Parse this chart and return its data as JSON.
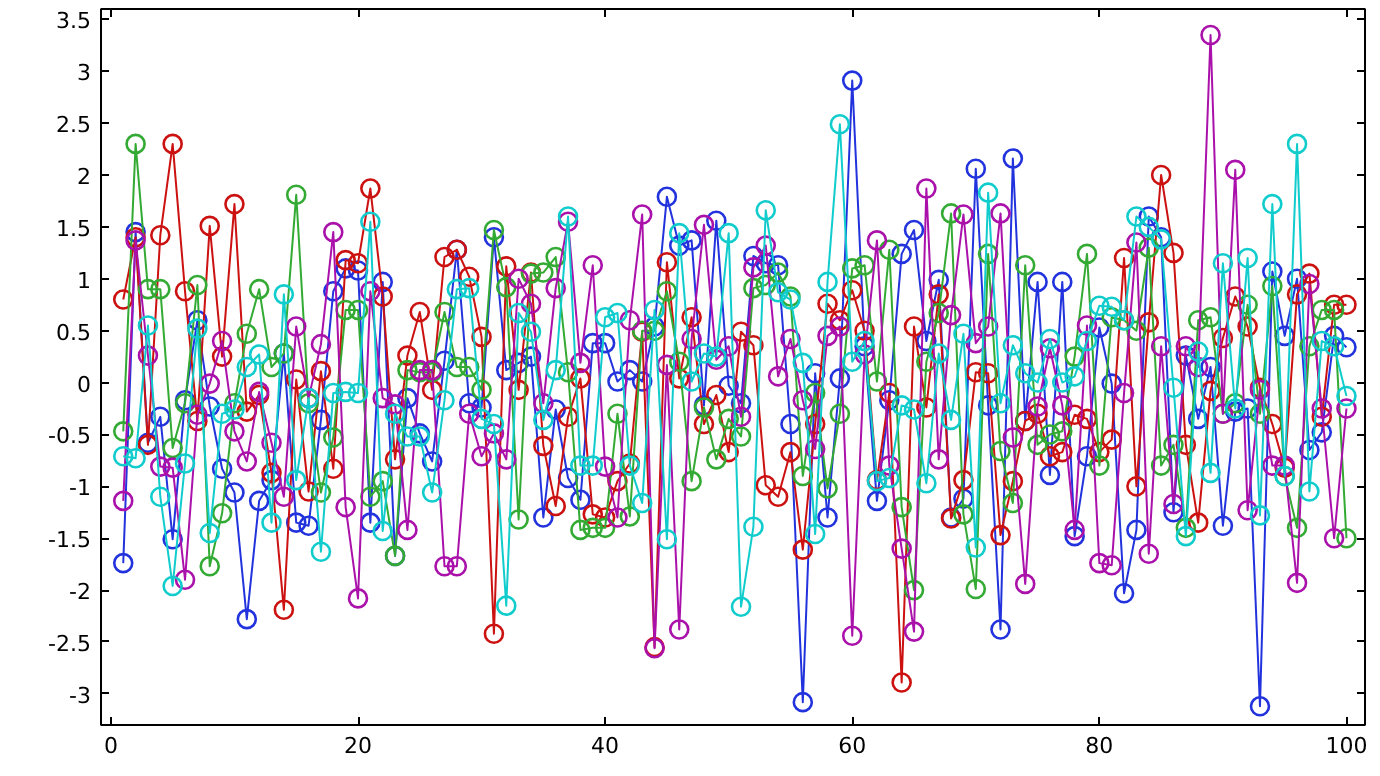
{
  "chart_data": {
    "type": "line",
    "marker": "circle",
    "line_style": "solid",
    "grid": false,
    "x": [
      1,
      2,
      3,
      4,
      5,
      6,
      7,
      8,
      9,
      10,
      11,
      12,
      13,
      14,
      15,
      16,
      17,
      18,
      19,
      20,
      21,
      22,
      23,
      24,
      25,
      26,
      27,
      28,
      29,
      30,
      31,
      32,
      33,
      34,
      35,
      36,
      37,
      38,
      39,
      40,
      41,
      42,
      43,
      44,
      45,
      46,
      47,
      48,
      49,
      50,
      51,
      52,
      53,
      54,
      55,
      56,
      57,
      58,
      59,
      60,
      61,
      62,
      63,
      64,
      65,
      66,
      67,
      68,
      69,
      70,
      71,
      72,
      73,
      74,
      75,
      76,
      77,
      78,
      79,
      80,
      81,
      82,
      83,
      84,
      85,
      86,
      87,
      88,
      89,
      90,
      91,
      92,
      93,
      94,
      95,
      96,
      97,
      98,
      99,
      100
    ],
    "xlim": [
      -0.8,
      101.5
    ],
    "xticks": [
      0,
      20,
      40,
      60,
      80,
      100
    ],
    "ylim": [
      -3.3,
      3.6
    ],
    "yticks": [
      -3,
      -2.5,
      -2,
      -1.5,
      -1,
      -0.5,
      0,
      0.5,
      1,
      1.5,
      2,
      2.5,
      3,
      3.5
    ],
    "series": [
      {
        "color": "#2233dd",
        "values": [
          -1.74,
          1.45,
          -0.58,
          -0.33,
          -1.51,
          -0.17,
          0.6,
          -0.23,
          -0.83,
          -1.06,
          -2.28,
          -1.14,
          -0.94,
          0.28,
          -1.35,
          -1.38,
          -0.36,
          0.88,
          1.1,
          1.08,
          -1.35,
          0.97,
          -1.67,
          -0.15,
          -0.49,
          -0.76,
          0.21,
          1.28,
          -0.2,
          -0.24,
          1.4,
          0.12,
          0.19,
          0.25,
          -1.3,
          -0.26,
          -0.92,
          -1.13,
          0.38,
          0.38,
          0.01,
          0.12,
          0.01,
          0.54,
          1.79,
          1.32,
          1.37,
          -0.22,
          1.56,
          -0.03,
          -0.2,
          1.22,
          1.15,
          1.13,
          -0.4,
          -3.08,
          0.09,
          -1.3,
          0.04,
          2.91,
          0.35,
          -1.14,
          -0.17,
          1.24,
          1.47,
          0.4,
          0.99,
          -1.3,
          -1.12,
          2.06,
          -0.22,
          -2.38,
          2.16,
          -0.37,
          0.97,
          -0.89,
          0.97,
          -1.48,
          -0.71,
          0.53,
          -0.01,
          -2.03,
          -1.42,
          1.6,
          1.4,
          -1.25,
          0.26,
          -0.35,
          0.15,
          -1.38,
          -0.28,
          -0.25,
          -3.12,
          1.07,
          0.45,
          1.0,
          -0.65,
          -0.48,
          0.45,
          0.34
        ]
      },
      {
        "color": "#cc1111",
        "values": [
          0.8,
          1.4,
          -0.6,
          1.42,
          2.3,
          0.88,
          -0.37,
          1.51,
          0.25,
          1.72,
          -0.28,
          -0.12,
          -0.87,
          -2.19,
          0.03,
          -1.05,
          0.11,
          -0.83,
          1.18,
          1.15,
          1.87,
          0.83,
          -0.74,
          0.26,
          0.68,
          -0.07,
          1.21,
          1.28,
          1.02,
          0.44,
          -2.42,
          1.12,
          -0.07,
          1.06,
          -0.61,
          -1.19,
          -0.33,
          0.04,
          -1.27,
          -1.3,
          -0.95,
          -0.78,
          0.49,
          -2.55,
          1.16,
          0.04,
          0.63,
          -0.4,
          -0.12,
          -0.67,
          0.49,
          0.36,
          -0.99,
          -1.1,
          -0.67,
          -1.61,
          -0.4,
          0.76,
          0.6,
          0.89,
          0.5,
          -0.94,
          -0.1,
          -2.89,
          0.54,
          -0.24,
          0.85,
          -1.31,
          -0.94,
          0.1,
          0.09,
          -1.47,
          -0.95,
          -0.37,
          -0.3,
          -0.71,
          -0.67,
          -0.31,
          -0.35,
          -0.67,
          -0.55,
          1.2,
          -1.0,
          0.58,
          2.0,
          1.25,
          -0.6,
          -1.35,
          -0.08,
          0.43,
          0.83,
          0.54,
          -0.05,
          -0.4,
          -0.82,
          0.85,
          1.05,
          -0.33,
          0.75,
          0.75
        ]
      },
      {
        "color": "#33aa33",
        "values": [
          -0.47,
          2.3,
          0.9,
          0.9,
          -0.63,
          -0.2,
          0.94,
          -1.77,
          -1.26,
          -0.2,
          0.47,
          0.9,
          0.15,
          0.28,
          1.81,
          -0.2,
          -1.06,
          -0.53,
          0.7,
          0.7,
          -1.1,
          -0.95,
          -1.67,
          0.12,
          0.1,
          0.1,
          0.68,
          0.15,
          0.15,
          -0.07,
          1.47,
          0.92,
          -1.32,
          1.05,
          1.06,
          1.21,
          0.1,
          -1.42,
          -1.4,
          -1.4,
          -0.3,
          -1.29,
          0.5,
          0.5,
          0.88,
          0.2,
          -0.95,
          -0.24,
          -0.74,
          -0.35,
          -0.52,
          0.91,
          0.94,
          1.06,
          0.83,
          -0.9,
          -0.1,
          -1.02,
          -0.3,
          1.1,
          1.13,
          0.01,
          1.28,
          -1.2,
          -2.0,
          0.2,
          0.67,
          1.63,
          -1.27,
          -1.99,
          1.24,
          -0.66,
          -1.16,
          1.13,
          -0.6,
          -0.5,
          -0.47,
          0.25,
          1.24,
          -0.8,
          0.63,
          0.6,
          0.5,
          1.3,
          -0.8,
          -0.6,
          -1.4,
          0.6,
          0.63,
          -0.3,
          -0.2,
          0.75,
          -0.3,
          0.93,
          -0.9,
          -1.4,
          0.35,
          0.7,
          0.7,
          -1.5
        ]
      },
      {
        "color": "#aa11aa",
        "values": [
          -1.14,
          1.37,
          0.26,
          -0.81,
          -0.82,
          -1.9,
          -0.31,
          -0.01,
          0.4,
          -0.47,
          -0.76,
          -0.09,
          -0.58,
          -1.1,
          0.54,
          -0.15,
          0.37,
          1.45,
          -1.2,
          -2.08,
          0.88,
          -0.15,
          -0.21,
          -1.42,
          0.12,
          0.12,
          -1.77,
          -1.77,
          -0.3,
          -0.71,
          -0.49,
          -0.74,
          1.0,
          0.76,
          -0.2,
          0.91,
          1.55,
          0.19,
          1.13,
          -0.81,
          -1.3,
          0.6,
          1.62,
          -2.56,
          0.17,
          -2.38,
          0.42,
          1.52,
          0.22,
          0.35,
          -0.33,
          1.11,
          1.32,
          0.06,
          0.42,
          -0.17,
          -0.64,
          0.45,
          0.54,
          -2.44,
          0.27,
          1.37,
          -0.8,
          -1.6,
          -2.4,
          1.87,
          -0.74,
          0.65,
          1.62,
          0.38,
          0.54,
          1.63,
          -0.53,
          -1.94,
          -0.23,
          0.33,
          -0.22,
          -1.42,
          0.55,
          -1.74,
          -1.76,
          -0.1,
          1.35,
          -1.65,
          0.35,
          -1.17,
          0.35,
          0.15,
          3.35,
          -0.3,
          2.05,
          -1.23,
          -0.07,
          -0.8,
          -0.8,
          -1.93,
          0.95,
          -0.25,
          -1.5,
          -0.25
        ]
      },
      {
        "color": "#11cccc",
        "values": [
          -0.71,
          -0.73,
          0.55,
          -1.1,
          -1.96,
          -0.78,
          0.52,
          -1.45,
          -0.3,
          -0.26,
          0.15,
          0.27,
          -1.35,
          0.85,
          -0.94,
          -0.15,
          -1.63,
          -0.1,
          -0.09,
          -0.1,
          1.55,
          -1.43,
          -0.3,
          -0.52,
          -0.52,
          -1.06,
          -0.17,
          0.9,
          0.91,
          -0.35,
          -0.4,
          -2.15,
          0.67,
          0.49,
          -0.36,
          0.12,
          1.6,
          -0.8,
          -0.8,
          0.63,
          0.67,
          -0.8,
          -1.16,
          0.7,
          -1.51,
          1.44,
          0.01,
          0.28,
          0.25,
          1.44,
          -2.16,
          -1.39,
          1.66,
          0.87,
          0.8,
          0.19,
          -1.46,
          0.97,
          2.49,
          0.2,
          0.4,
          -0.95,
          -0.92,
          -0.22,
          -0.26,
          -0.97,
          0.28,
          -0.36,
          0.47,
          -1.59,
          1.83,
          -0.2,
          0.36,
          0.09,
          0.0,
          0.42,
          0.0,
          0.06,
          0.4,
          0.74,
          0.73,
          0.6,
          1.6,
          1.5,
          1.38,
          -0.05,
          -1.48,
          0.3,
          -0.87,
          1.15,
          -0.25,
          1.2,
          -1.28,
          1.72,
          -0.9,
          2.3,
          -1.05,
          0.4,
          0.35,
          -0.13
        ]
      }
    ]
  }
}
